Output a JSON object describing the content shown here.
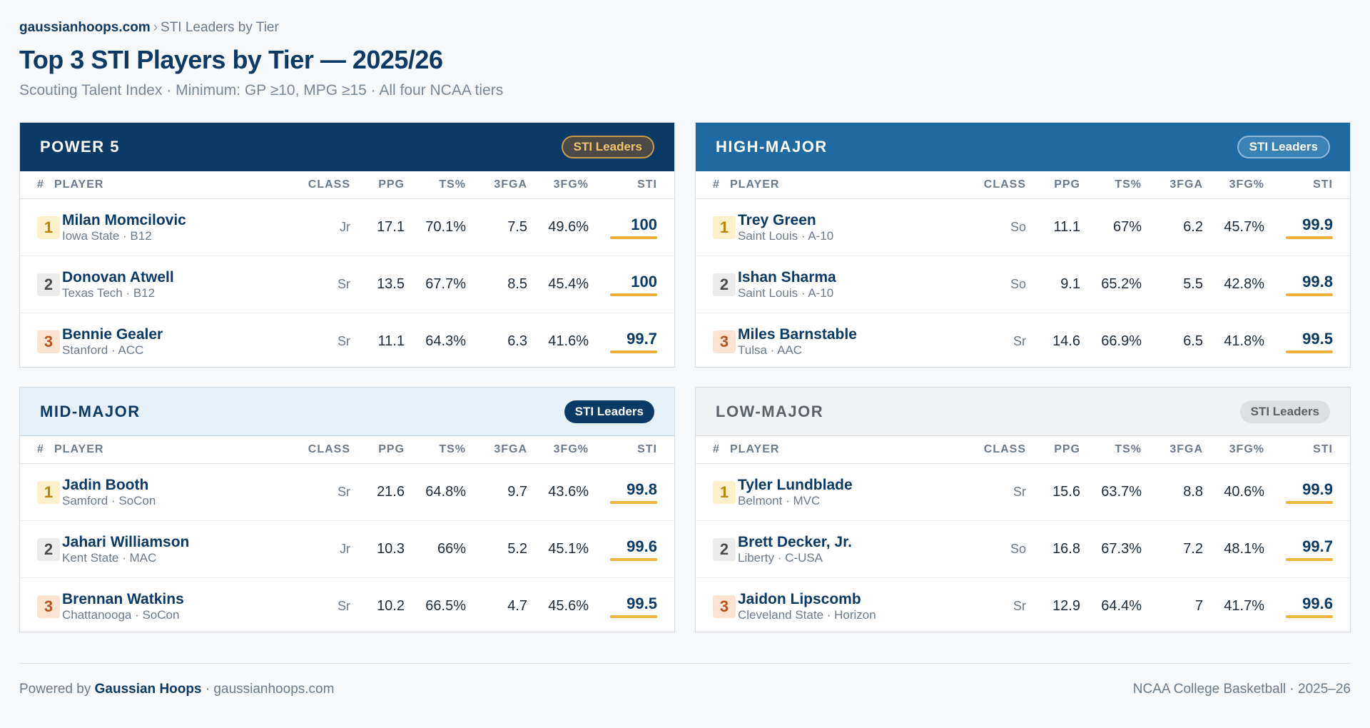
{
  "breadcrumb": {
    "site": "gaussianhoops.com",
    "separator": "›",
    "page": "STI Leaders by Tier"
  },
  "title": "Top 3 STI Players by Tier — 2025/26",
  "subtitle": "Scouting Talent Index · Minimum: GP ≥10, MPG ≥15 · All four NCAA tiers",
  "columns": {
    "rank": "#",
    "player": "PLAYER",
    "class": "CLASS",
    "ppg": "PPG",
    "ts": "TS%",
    "fga3": "3FGA",
    "fg3": "3FG%",
    "sti": "STI"
  },
  "tiers": [
    {
      "name": "POWER 5",
      "badge": "STI Leaders",
      "players": [
        {
          "rank": "1",
          "name": "Milan Momcilovic",
          "team": "Iowa State · B12",
          "class": "Jr",
          "ppg": "17.1",
          "ts": "70.1%",
          "fga3": "7.5",
          "fg3": "49.6%",
          "sti": "100"
        },
        {
          "rank": "2",
          "name": "Donovan Atwell",
          "team": "Texas Tech · B12",
          "class": "Sr",
          "ppg": "13.5",
          "ts": "67.7%",
          "fga3": "8.5",
          "fg3": "45.4%",
          "sti": "100"
        },
        {
          "rank": "3",
          "name": "Bennie Gealer",
          "team": "Stanford · ACC",
          "class": "Sr",
          "ppg": "11.1",
          "ts": "64.3%",
          "fga3": "6.3",
          "fg3": "41.6%",
          "sti": "99.7"
        }
      ]
    },
    {
      "name": "HIGH-MAJOR",
      "badge": "STI Leaders",
      "players": [
        {
          "rank": "1",
          "name": "Trey Green",
          "team": "Saint Louis · A-10",
          "class": "So",
          "ppg": "11.1",
          "ts": "67%",
          "fga3": "6.2",
          "fg3": "45.7%",
          "sti": "99.9"
        },
        {
          "rank": "2",
          "name": "Ishan Sharma",
          "team": "Saint Louis · A-10",
          "class": "So",
          "ppg": "9.1",
          "ts": "65.2%",
          "fga3": "5.5",
          "fg3": "42.8%",
          "sti": "99.8"
        },
        {
          "rank": "3",
          "name": "Miles Barnstable",
          "team": "Tulsa · AAC",
          "class": "Sr",
          "ppg": "14.6",
          "ts": "66.9%",
          "fga3": "6.5",
          "fg3": "41.8%",
          "sti": "99.5"
        }
      ]
    },
    {
      "name": "MID-MAJOR",
      "badge": "STI Leaders",
      "players": [
        {
          "rank": "1",
          "name": "Jadin Booth",
          "team": "Samford · SoCon",
          "class": "Sr",
          "ppg": "21.6",
          "ts": "64.8%",
          "fga3": "9.7",
          "fg3": "43.6%",
          "sti": "99.8"
        },
        {
          "rank": "2",
          "name": "Jahari Williamson",
          "team": "Kent State · MAC",
          "class": "Jr",
          "ppg": "10.3",
          "ts": "66%",
          "fga3": "5.2",
          "fg3": "45.1%",
          "sti": "99.6"
        },
        {
          "rank": "3",
          "name": "Brennan Watkins",
          "team": "Chattanooga · SoCon",
          "class": "Sr",
          "ppg": "10.2",
          "ts": "66.5%",
          "fga3": "4.7",
          "fg3": "45.6%",
          "sti": "99.5"
        }
      ]
    },
    {
      "name": "LOW-MAJOR",
      "badge": "STI Leaders",
      "players": [
        {
          "rank": "1",
          "name": "Tyler Lundblade",
          "team": "Belmont · MVC",
          "class": "Sr",
          "ppg": "15.6",
          "ts": "63.7%",
          "fga3": "8.8",
          "fg3": "40.6%",
          "sti": "99.9"
        },
        {
          "rank": "2",
          "name": "Brett Decker, Jr.",
          "team": "Liberty · C-USA",
          "class": "So",
          "ppg": "16.8",
          "ts": "67.3%",
          "fga3": "7.2",
          "fg3": "48.1%",
          "sti": "99.7"
        },
        {
          "rank": "3",
          "name": "Jaidon Lipscomb",
          "team": "Cleveland State · Horizon",
          "class": "Sr",
          "ppg": "12.9",
          "ts": "64.4%",
          "fga3": "7",
          "fg3": "41.7%",
          "sti": "99.6"
        }
      ]
    }
  ],
  "footer": {
    "powered_by": "Powered by",
    "brand": "Gaussian Hoops",
    "site": "· gaussianhoops.com",
    "right": "NCAA College Basketball · 2025–26"
  },
  "colors": {
    "navy": "#0b3a66",
    "accent_bar": "#f0b43c"
  }
}
